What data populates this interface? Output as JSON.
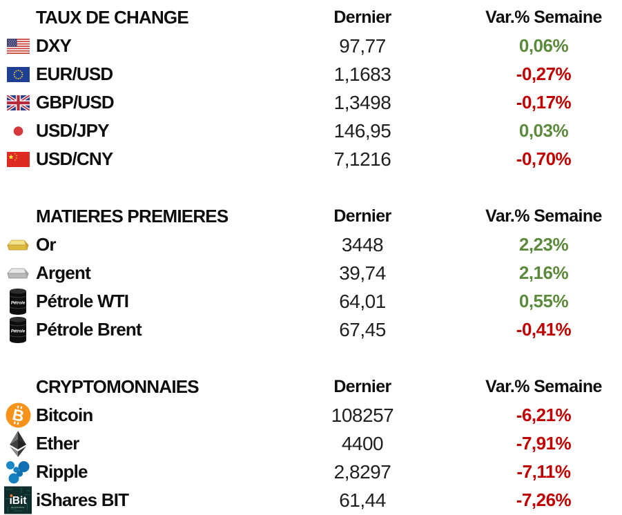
{
  "colors": {
    "positive": "#5c8a3c",
    "negative": "#c00000",
    "text": "#0e0e0e"
  },
  "chart_data": [
    {
      "type": "table",
      "title": "TAUX DE CHANGE",
      "columns": {
        "dernier": "Dernier",
        "var": "Var.% Semaine"
      },
      "rows": [
        {
          "icon": "us-flag",
          "label": "DXY",
          "last": "97,77",
          "change": "0,06%",
          "direction": "up"
        },
        {
          "icon": "eu-flag",
          "label": "EUR/USD",
          "last": "1,1683",
          "change": "-0,27%",
          "direction": "down"
        },
        {
          "icon": "uk-flag",
          "label": "GBP/USD",
          "last": "1,3498",
          "change": "-0,17%",
          "direction": "down"
        },
        {
          "icon": "japan-flag",
          "label": "USD/JPY",
          "last": "146,95",
          "change": "0,03%",
          "direction": "up"
        },
        {
          "icon": "china-flag",
          "label": "USD/CNY",
          "last": "7,1216",
          "change": "-0,70%",
          "direction": "down"
        }
      ]
    },
    {
      "type": "table",
      "title": "MATIERES PREMIERES",
      "columns": {
        "dernier": "Dernier",
        "var": "Var.% Semaine"
      },
      "rows": [
        {
          "icon": "gold-bar",
          "label": "Or",
          "last": "3448",
          "change": "2,23%",
          "direction": "up"
        },
        {
          "icon": "silver-bar",
          "label": "Argent",
          "last": "39,74",
          "change": "2,16%",
          "direction": "up"
        },
        {
          "icon": "oil-barrel",
          "label": "Pétrole WTI",
          "last": "64,01",
          "change": "0,55%",
          "direction": "up"
        },
        {
          "icon": "oil-barrel",
          "label": "Pétrole Brent",
          "last": "67,45",
          "change": "-0,41%",
          "direction": "down"
        }
      ]
    },
    {
      "type": "table",
      "title": "CRYPTOMONNAIES",
      "columns": {
        "dernier": "Dernier",
        "var": "Var.% Semaine"
      },
      "rows": [
        {
          "icon": "bitcoin",
          "label": "Bitcoin",
          "last": "108257",
          "change": "-6,21%",
          "direction": "down"
        },
        {
          "icon": "ethereum",
          "label": "Ether",
          "last": "4400",
          "change": "-7,91%",
          "direction": "down"
        },
        {
          "icon": "ripple",
          "label": "Ripple",
          "last": "2,8297",
          "change": "-7,11%",
          "direction": "down"
        },
        {
          "icon": "ibit",
          "label": "iShares BIT",
          "last": "61,44",
          "change": "-7,26%",
          "direction": "down"
        }
      ]
    }
  ]
}
